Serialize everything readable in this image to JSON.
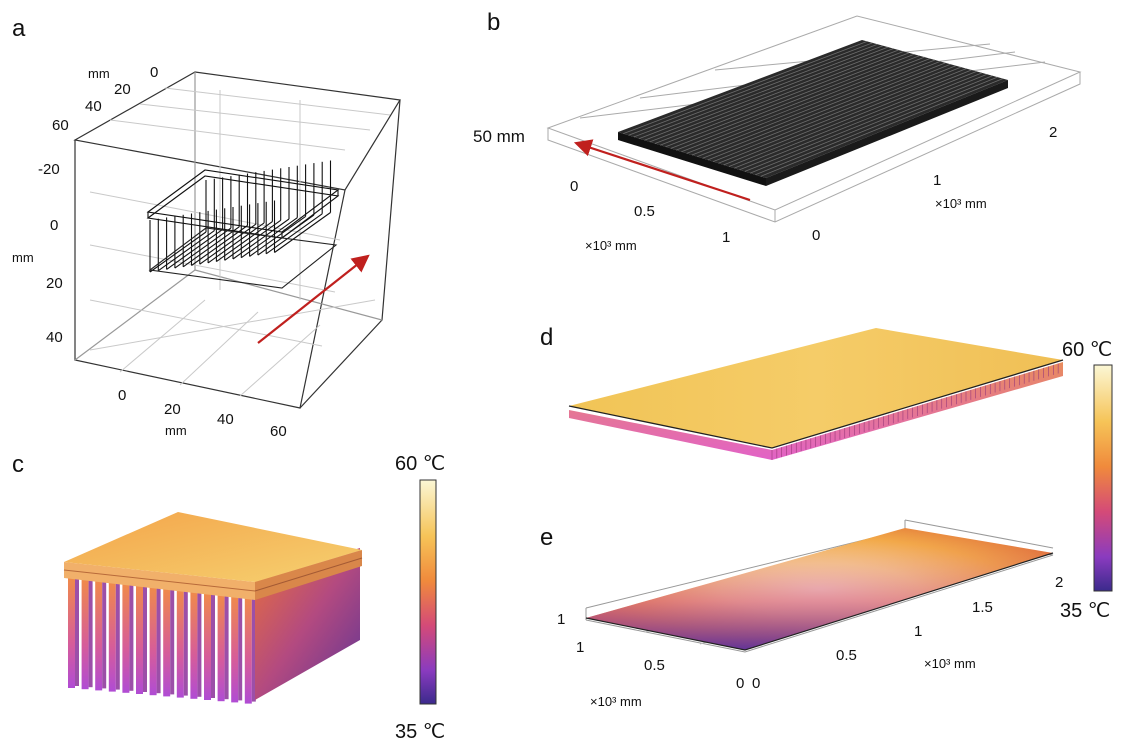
{
  "panels": {
    "a": {
      "letter": "a",
      "mm_top": "mm",
      "mm_left": "mm",
      "mm_bottom": "mm",
      "ticks_top": [
        "0",
        "20",
        "40",
        "60"
      ],
      "ticks_left": [
        "-20",
        "0",
        "20",
        "40"
      ],
      "ticks_bottom": [
        "0",
        "20",
        "40",
        "60"
      ]
    },
    "b": {
      "letter": "b",
      "height_label": "50 mm",
      "ticks_left": [
        "0",
        "0.5",
        "1"
      ],
      "ticks_right": [
        "0",
        "1",
        "2"
      ],
      "unit_left": "×10³ mm",
      "unit_right": "×10³ mm"
    },
    "c": {
      "letter": "c"
    },
    "d": {
      "letter": "d"
    },
    "e": {
      "letter": "e",
      "tick_height": "1",
      "ticks_left": [
        "1",
        "0.5",
        "0"
      ],
      "ticks_right": [
        "0",
        "0.5",
        "1",
        "1.5",
        "2"
      ],
      "unit_left": "×10³ mm",
      "unit_right": "×10³ mm"
    }
  },
  "colorbars": {
    "c": {
      "max_label": "60 ℃",
      "min_label": "35 ℃"
    },
    "de": {
      "max_label": "60 ℃",
      "min_label": "35 ℃"
    }
  },
  "colors": {
    "arrow": "#c0201e",
    "cmap_top": "#fbf7d5",
    "cmap_mid_high": "#f6a43a",
    "cmap_mid": "#e0564f",
    "cmap_mid_low": "#a23bb8",
    "cmap_bottom": "#3b2a8c"
  }
}
